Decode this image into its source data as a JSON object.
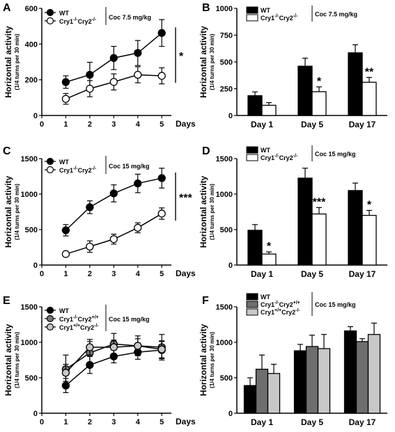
{
  "chart_data": [
    {
      "panel_label": "A",
      "type": "line",
      "ylabel": "Horizontal activity",
      "ylabel_sub": "(1/4 turns per 30 min)",
      "xlabel": "Days",
      "x": [
        1,
        2,
        3,
        4,
        5
      ],
      "xticks": [
        "0",
        "1",
        "2",
        "3",
        "4",
        "5"
      ],
      "yticks": [
        "0",
        "200",
        "400",
        "600"
      ],
      "ylim": [
        0,
        600
      ],
      "xlim": [
        0,
        5.4
      ],
      "legend_note": "Coc 7.5 mg/kg",
      "significance": "*",
      "series": [
        {
          "name": "WT",
          "name_html": [
            "WT"
          ],
          "marker": "#000000",
          "values": [
            187,
            228,
            322,
            350,
            462
          ],
          "errors": [
            35,
            70,
            65,
            70,
            75
          ]
        },
        {
          "name": "Cry1-/-Cry2-/-",
          "name_html": [
            "Cry1",
            "-/-",
            "Cry2",
            "-/-"
          ],
          "marker": "#ffffff",
          "values": [
            93,
            150,
            188,
            228,
            222
          ],
          "errors": [
            30,
            45,
            45,
            45,
            45
          ]
        }
      ]
    },
    {
      "panel_label": "B",
      "type": "bar",
      "ylabel": "Horizontal activity",
      "ylabel_sub": "(1/4 turns per 30 min)",
      "categories": [
        "Day 1",
        "Day 5",
        "Day 17"
      ],
      "yticks": [
        "0",
        "250",
        "500",
        "750",
        "1000"
      ],
      "ylim": [
        0,
        1000
      ],
      "legend_note": "Coc 7.5 mg/kg",
      "series": [
        {
          "name": "WT",
          "name_html": [
            "WT"
          ],
          "color": "#000000",
          "values": [
            185,
            460,
            585
          ],
          "errors": [
            35,
            75,
            75
          ]
        },
        {
          "name": "Cry1-/-Cry2-/-",
          "name_html": [
            "Cry1",
            "-/-",
            "Cry2",
            "-/-"
          ],
          "color": "#ffffff",
          "values": [
            95,
            222,
            310
          ],
          "errors": [
            25,
            45,
            45
          ]
        }
      ],
      "annotations": [
        {
          "category": 1,
          "series": 1,
          "text": "*"
        },
        {
          "category": 2,
          "series": 1,
          "text": "**"
        }
      ]
    },
    {
      "panel_label": "C",
      "type": "line",
      "ylabel": "Horizontal activity",
      "ylabel_sub": "(1/4 turns per 30 min)",
      "xlabel": "Days",
      "x": [
        1,
        2,
        3,
        4,
        5
      ],
      "xticks": [
        "0",
        "1",
        "2",
        "3",
        "4",
        "5"
      ],
      "yticks": [
        "0",
        "500",
        "1000",
        "1500"
      ],
      "ylim": [
        0,
        1500
      ],
      "xlim": [
        0,
        5.4
      ],
      "legend_note": "Coc 15 mg/kg",
      "significance": "***",
      "series": [
        {
          "name": "WT",
          "name_html": [
            "WT"
          ],
          "marker": "#000000",
          "values": [
            490,
            815,
            1010,
            1150,
            1225
          ],
          "errors": [
            80,
            90,
            120,
            130,
            140
          ]
        },
        {
          "name": "Cry1-/-Cry2-/-",
          "name_html": [
            "Cry1",
            "-/-",
            "Cry2",
            "-/-"
          ],
          "marker": "#ffffff",
          "values": [
            155,
            260,
            365,
            525,
            725
          ],
          "errors": [
            20,
            80,
            70,
            70,
            80
          ]
        }
      ]
    },
    {
      "panel_label": "D",
      "type": "bar",
      "ylabel": "Horizontal activity",
      "ylabel_sub": "(1/4 turns per 30 min)",
      "categories": [
        "Day 1",
        "Day 5",
        "Day 17"
      ],
      "yticks": [
        "0",
        "500",
        "1000",
        "1500"
      ],
      "ylim": [
        0,
        1500
      ],
      "legend_note": "Coc 15 mg/kg",
      "series": [
        {
          "name": "WT",
          "name_html": [
            "WT"
          ],
          "color": "#000000",
          "values": [
            490,
            1225,
            1050
          ],
          "errors": [
            80,
            140,
            105
          ]
        },
        {
          "name": "Cry1-/-Cry2-/-",
          "name_html": [
            "Cry1",
            "-/-",
            "Cry2",
            "-/-"
          ],
          "color": "#ffffff",
          "values": [
            155,
            720,
            700
          ],
          "errors": [
            30,
            90,
            70
          ]
        }
      ],
      "annotations": [
        {
          "category": 0,
          "series": 1,
          "text": "*"
        },
        {
          "category": 1,
          "series": 1,
          "text": "***"
        },
        {
          "category": 2,
          "series": 1,
          "text": "*"
        }
      ]
    },
    {
      "panel_label": "E",
      "type": "line",
      "ylabel": "Horizontal activity",
      "ylabel_sub": "(1/4 turns per 30 min)",
      "xlabel": "Days",
      "x": [
        1,
        2,
        3,
        4,
        5
      ],
      "xticks": [
        "0",
        "1",
        "2",
        "3",
        "4",
        "5"
      ],
      "yticks": [
        "0",
        "500",
        "1000",
        "1500"
      ],
      "ylim": [
        0,
        1500
      ],
      "xlim": [
        0,
        5.4
      ],
      "legend_note": "Coc 15 mg/kg",
      "series": [
        {
          "name": "WT",
          "name_html": [
            "WT"
          ],
          "marker": "#000000",
          "values": [
            390,
            680,
            800,
            860,
            890
          ],
          "errors": [
            100,
            120,
            90,
            100,
            120
          ]
        },
        {
          "name": "Cry1-/-Cry2+/+",
          "name_html": [
            "Cry1",
            "-/-",
            "Cry2",
            "+/+"
          ],
          "marker": "#777777",
          "values": [
            620,
            850,
            975,
            950,
            930
          ],
          "errors": [
            200,
            160,
            150,
            140,
            180
          ]
        },
        {
          "name": "Cry1+/+Cry2-/-",
          "name_html": [
            "Cry1",
            "+/+",
            "Cry2",
            "-/-"
          ],
          "marker": "#c8c8c8",
          "values": [
            570,
            930,
            930,
            950,
            900
          ],
          "errors": [
            120,
            110,
            100,
            100,
            120
          ]
        }
      ]
    },
    {
      "panel_label": "F",
      "type": "bar",
      "ylabel": "Horizontal activity",
      "ylabel_sub": "(1/4 turns per 30 min)",
      "categories": [
        "Day 1",
        "Day 5",
        "Day 17"
      ],
      "yticks": [
        "0",
        "500",
        "1000",
        "1500"
      ],
      "ylim": [
        0,
        1500
      ],
      "legend_note": "Coc 15 mg/kg",
      "series": [
        {
          "name": "WT",
          "name_html": [
            "WT"
          ],
          "color": "#000000",
          "values": [
            390,
            880,
            1160
          ],
          "errors": [
            110,
            90,
            60
          ]
        },
        {
          "name": "Cry1-/-Cry2+/+",
          "name_html": [
            "Cry1",
            "-/-",
            "Cry2",
            "+/+"
          ],
          "color": "#6e6e6e",
          "values": [
            620,
            940,
            1010
          ],
          "errors": [
            200,
            160,
            40
          ]
        },
        {
          "name": "Cry1+/+Cry2-/-",
          "name_html": [
            "Cry1",
            "+/+",
            "Cry2",
            "-/-"
          ],
          "color": "#c8c8c8",
          "values": [
            560,
            910,
            1110
          ],
          "errors": [
            130,
            200,
            160
          ]
        }
      ],
      "annotations": []
    }
  ]
}
